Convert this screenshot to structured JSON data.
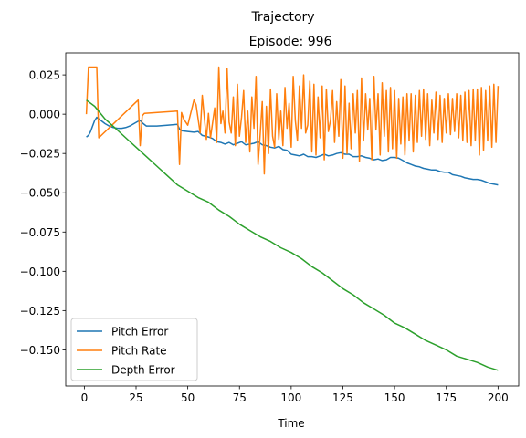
{
  "figure": {
    "suptitle": "Trajectory",
    "title": "Episode: 996"
  },
  "chart_data": {
    "type": "line",
    "suptitle": "Trajectory",
    "title": "Episode: 996",
    "xlabel": "Time",
    "ylabel": "",
    "xlim": [
      -9,
      210
    ],
    "ylim": [
      -0.173,
      0.039
    ],
    "x_ticks": [
      0,
      25,
      50,
      75,
      100,
      125,
      150,
      175,
      200
    ],
    "x_tick_labels": [
      "0",
      "25",
      "50",
      "75",
      "100",
      "125",
      "150",
      "175",
      "200"
    ],
    "y_ticks": [
      0.025,
      0.0,
      -0.025,
      -0.05,
      -0.075,
      -0.1,
      -0.125,
      -0.15
    ],
    "y_tick_labels": [
      "0.025",
      "0.000",
      "−0.025",
      "−0.050",
      "−0.075",
      "−0.100",
      "−0.125",
      "−0.150"
    ],
    "grid": false,
    "legend_position": "lower-left",
    "series": [
      {
        "name": "Pitch Error",
        "color": "#1f77b4",
        "x": [
          1,
          2,
          3,
          4,
          5,
          6,
          8,
          10,
          12,
          14,
          16,
          18,
          20,
          22,
          24,
          26,
          27,
          28,
          30,
          35,
          40,
          45,
          46,
          47,
          50,
          53,
          55,
          57,
          60,
          62,
          64,
          66,
          68,
          70,
          72,
          74,
          76,
          78,
          80,
          82,
          84,
          86,
          88,
          90,
          92,
          94,
          96,
          98,
          100,
          102,
          104,
          106,
          108,
          110,
          112,
          114,
          116,
          118,
          120,
          122,
          124,
          126,
          128,
          130,
          132,
          134,
          136,
          138,
          140,
          142,
          144,
          146,
          148,
          150,
          152,
          154,
          156,
          158,
          160,
          162,
          164,
          166,
          168,
          170,
          172,
          174,
          176,
          178,
          180,
          182,
          184,
          186,
          188,
          190,
          192,
          194,
          196,
          198,
          200
        ],
        "values": [
          -0.0145,
          -0.0135,
          -0.011,
          -0.0075,
          -0.004,
          -0.002,
          -0.004,
          -0.006,
          -0.0075,
          -0.0085,
          -0.009,
          -0.009,
          -0.0085,
          -0.0075,
          -0.006,
          -0.0045,
          -0.004,
          -0.0055,
          -0.0075,
          -0.0075,
          -0.007,
          -0.0065,
          -0.0095,
          -0.0105,
          -0.011,
          -0.0115,
          -0.011,
          -0.0135,
          -0.0145,
          -0.0155,
          -0.0175,
          -0.018,
          -0.019,
          -0.018,
          -0.0195,
          -0.0185,
          -0.0175,
          -0.0195,
          -0.019,
          -0.0185,
          -0.0175,
          -0.0195,
          -0.02,
          -0.021,
          -0.0215,
          -0.0205,
          -0.0225,
          -0.023,
          -0.0255,
          -0.026,
          -0.0265,
          -0.0255,
          -0.027,
          -0.027,
          -0.0275,
          -0.0265,
          -0.0255,
          -0.0265,
          -0.026,
          -0.025,
          -0.0245,
          -0.0255,
          -0.0255,
          -0.027,
          -0.027,
          -0.0265,
          -0.0275,
          -0.028,
          -0.029,
          -0.0285,
          -0.0295,
          -0.029,
          -0.0275,
          -0.0275,
          -0.028,
          -0.0295,
          -0.031,
          -0.032,
          -0.033,
          -0.0335,
          -0.0345,
          -0.035,
          -0.0355,
          -0.0355,
          -0.0365,
          -0.037,
          -0.037,
          -0.0385,
          -0.039,
          -0.0395,
          -0.0405,
          -0.041,
          -0.0415,
          -0.0415,
          -0.042,
          -0.043,
          -0.044,
          -0.0445,
          -0.045
        ]
      },
      {
        "name": "Pitch Rate",
        "color": "#ff7f0e",
        "x": [
          1,
          2,
          4,
          6,
          7,
          26,
          27,
          28,
          29,
          45,
          46,
          47,
          48,
          50,
          53,
          54,
          56,
          57,
          59,
          60,
          61,
          63,
          64,
          65,
          66,
          67,
          68,
          69,
          70,
          71,
          72,
          73,
          74,
          75,
          76,
          77,
          78,
          79,
          80,
          81,
          82,
          83,
          84,
          85,
          86,
          87,
          88,
          89,
          90,
          91,
          92,
          93,
          94,
          95,
          96,
          97,
          98,
          99,
          100,
          101,
          102,
          103,
          104,
          105,
          106,
          107,
          108,
          109,
          110,
          111,
          112,
          113,
          114,
          115,
          116,
          117,
          118,
          119,
          120,
          121,
          122,
          123,
          124,
          125,
          126,
          127,
          128,
          129,
          130,
          131,
          132,
          133,
          134,
          135,
          136,
          137,
          138,
          139,
          140,
          141,
          142,
          143,
          144,
          145,
          146,
          147,
          148,
          149,
          150,
          151,
          152,
          153,
          154,
          155,
          156,
          157,
          158,
          159,
          160,
          161,
          162,
          163,
          164,
          165,
          166,
          167,
          168,
          169,
          170,
          171,
          172,
          173,
          174,
          175,
          176,
          177,
          178,
          179,
          180,
          181,
          182,
          183,
          184,
          185,
          186,
          187,
          188,
          189,
          190,
          191,
          192,
          193,
          194,
          195,
          196,
          197,
          198,
          199,
          200
        ],
        "values": [
          0.0,
          0.03,
          0.03,
          0.03,
          -0.015,
          0.009,
          -0.02,
          -0.001,
          0.0005,
          0.002,
          -0.032,
          0.001,
          -0.003,
          -0.007,
          0.009,
          0.006,
          -0.012,
          0.012,
          -0.016,
          0.0005,
          -0.015,
          0.004,
          -0.018,
          0.03,
          -0.006,
          0.002,
          -0.012,
          0.029,
          -0.005,
          -0.012,
          0.011,
          -0.02,
          0.019,
          -0.014,
          -0.002,
          0.015,
          -0.018,
          0.002,
          -0.024,
          0.011,
          -0.009,
          0.024,
          -0.032,
          -0.013,
          0.008,
          -0.038,
          0.005,
          -0.025,
          0.016,
          -0.014,
          -0.021,
          0.013,
          -0.016,
          0.002,
          -0.02,
          0.017,
          -0.009,
          0.007,
          -0.021,
          0.024,
          -0.004,
          -0.017,
          0.018,
          -0.009,
          0.025,
          -0.012,
          -0.007,
          0.021,
          -0.024,
          0.019,
          -0.026,
          0.011,
          -0.015,
          0.018,
          -0.029,
          0.016,
          -0.011,
          -0.004,
          0.015,
          -0.018,
          0.008,
          -0.014,
          0.022,
          -0.028,
          0.018,
          -0.025,
          0.007,
          -0.022,
          0.013,
          -0.012,
          0.015,
          -0.03,
          0.023,
          -0.017,
          0.013,
          -0.01,
          0.01,
          -0.029,
          0.024,
          -0.01,
          0.013,
          -0.026,
          0.02,
          -0.014,
          0.015,
          -0.024,
          0.017,
          -0.022,
          0.015,
          -0.028,
          0.01,
          -0.019,
          0.011,
          -0.026,
          0.013,
          -0.017,
          0.013,
          -0.024,
          0.012,
          -0.018,
          0.015,
          -0.014,
          0.016,
          -0.016,
          0.013,
          -0.02,
          0.009,
          -0.012,
          0.014,
          -0.016,
          0.012,
          -0.018,
          0.01,
          -0.012,
          0.013,
          -0.013,
          0.01,
          -0.011,
          0.013,
          -0.015,
          0.012,
          -0.017,
          0.014,
          -0.018,
          0.015,
          -0.02,
          0.016,
          -0.017,
          0.016,
          -0.026,
          0.017,
          -0.023,
          0.015,
          -0.017,
          0.018,
          -0.021,
          0.019,
          -0.018,
          0.018
        ]
      },
      {
        "name": "Depth Error",
        "color": "#2ca02c",
        "x": [
          1,
          5,
          10,
          15,
          20,
          25,
          30,
          35,
          40,
          45,
          50,
          55,
          60,
          65,
          70,
          75,
          80,
          85,
          90,
          95,
          100,
          105,
          110,
          115,
          120,
          125,
          130,
          135,
          140,
          145,
          150,
          155,
          160,
          165,
          170,
          175,
          180,
          185,
          190,
          195,
          200
        ],
        "values": [
          0.009,
          0.005,
          -0.003,
          -0.009,
          -0.015,
          -0.021,
          -0.027,
          -0.033,
          -0.039,
          -0.045,
          -0.049,
          -0.053,
          -0.056,
          -0.061,
          -0.065,
          -0.07,
          -0.074,
          -0.078,
          -0.081,
          -0.085,
          -0.088,
          -0.092,
          -0.097,
          -0.101,
          -0.106,
          -0.111,
          -0.115,
          -0.12,
          -0.124,
          -0.128,
          -0.133,
          -0.136,
          -0.14,
          -0.144,
          -0.147,
          -0.15,
          -0.154,
          -0.156,
          -0.158,
          -0.161,
          -0.163
        ]
      }
    ]
  }
}
